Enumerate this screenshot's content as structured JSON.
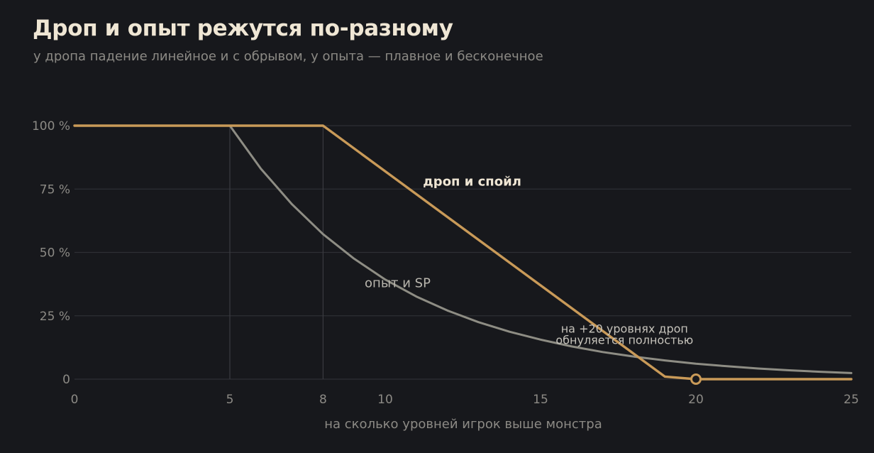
{
  "title": "Дроп и опыт режутся по-разному",
  "subtitle": "у дропа падение линейное и с обрывом, у опыта — плавное и бесконечное",
  "colors": {
    "background": "#17181c",
    "drop": "#c99a58",
    "exp": "#8e8d84",
    "grid": "#2e2f34",
    "text": "#8c8a85"
  },
  "chart_data": {
    "type": "line",
    "xlabel": "на сколько уровней игрок выше монстра",
    "ylabel": "",
    "xlim": [
      0,
      25
    ],
    "ylim": [
      0,
      100
    ],
    "x_ticks": [
      0,
      5,
      8,
      10,
      15,
      20,
      25
    ],
    "y_ticks": [
      0,
      25,
      50,
      75,
      100
    ],
    "y_tick_labels": [
      "0",
      "25 %",
      "50 %",
      "75 %",
      "100 %"
    ],
    "vertical_markers": [
      5,
      8
    ],
    "grid": "horizontal",
    "series": [
      {
        "name": "дроп и спойл",
        "color": "#c99a58",
        "x": [
          0,
          8,
          19,
          20,
          25
        ],
        "y": [
          100,
          100,
          1,
          0,
          0
        ]
      },
      {
        "name": "опыт и SP",
        "color": "#8e8d84",
        "x": [
          0,
          5,
          6,
          7,
          8,
          9,
          10,
          11,
          12,
          13,
          14,
          15,
          16,
          17,
          18,
          19,
          20,
          21,
          22,
          23,
          24,
          25
        ],
        "y": [
          100,
          100,
          83,
          69,
          57.2,
          47.5,
          39.3,
          32.6,
          27.1,
          22.5,
          18.7,
          15.6,
          12.9,
          10.7,
          8.9,
          7.4,
          6.1,
          5.1,
          4.2,
          3.5,
          2.9,
          2.4
        ]
      }
    ],
    "point_marker": {
      "x": 20,
      "y": 0
    },
    "annotations": [
      {
        "text": "дроп и спойл",
        "x": 12.8,
        "y": 78
      },
      {
        "text": "опыт и SP",
        "x": 10.4,
        "y": 38
      },
      {
        "text": "на +20 уровнях дроп",
        "x": 17.7,
        "y": 20
      },
      {
        "text": "обнуляется полностью",
        "x": 17.7,
        "y": 15.5
      }
    ]
  }
}
